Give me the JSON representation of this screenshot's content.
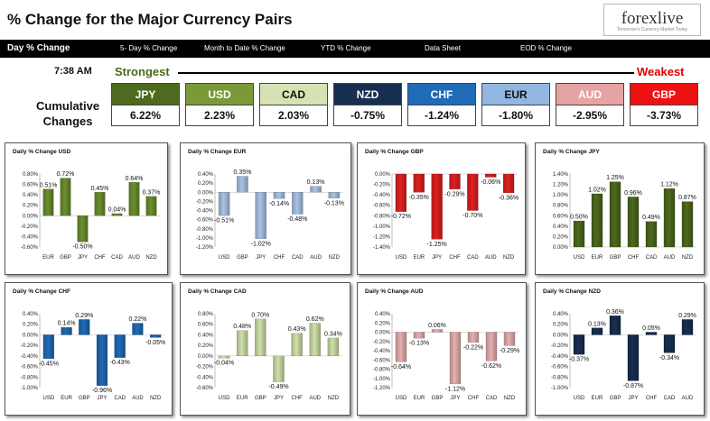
{
  "header": {
    "title": "% Change for the Major Currency Pairs",
    "logo": {
      "name": "forexlive",
      "tagline": "Tomorrow's Currency Market Today"
    }
  },
  "nav": [
    {
      "label": "Day % Change",
      "active": true
    },
    {
      "label": "5- Day % Change",
      "active": false
    },
    {
      "label": "Month to Date % Change",
      "active": false
    },
    {
      "label": "YTD % Change",
      "active": false
    },
    {
      "label": "Data Sheet",
      "active": false
    },
    {
      "label": "EOD % Change",
      "active": false
    }
  ],
  "summary": {
    "time": "7:38 AM",
    "strongest_label": "Strongest",
    "weakest_label": "Weakest",
    "cumulative_label_line1": "Cumulative",
    "cumulative_label_line2": "Changes",
    "currencies": [
      {
        "code": "JPY",
        "value": "6.22%",
        "color": "#4d6a1e",
        "text_color": "#ffffff"
      },
      {
        "code": "USD",
        "value": "2.23%",
        "color": "#7a9a3a",
        "text_color": "#ffffff"
      },
      {
        "code": "CAD",
        "value": "2.03%",
        "color": "#d6e2b4",
        "text_color": "#111111"
      },
      {
        "code": "NZD",
        "value": "-0.75%",
        "color": "#172f50",
        "text_color": "#ffffff"
      },
      {
        "code": "CHF",
        "value": "-1.24%",
        "color": "#1f6bb8",
        "text_color": "#ffffff"
      },
      {
        "code": "EUR",
        "value": "-1.80%",
        "color": "#93b6e0",
        "text_color": "#111111"
      },
      {
        "code": "AUD",
        "value": "-2.95%",
        "color": "#e6a3a3",
        "text_color": "#ffffff"
      },
      {
        "code": "GBP",
        "value": "-3.73%",
        "color": "#ee1111",
        "text_color": "#ffffff"
      }
    ]
  },
  "chart_data": [
    {
      "type": "bar",
      "title": "Daily % Change USD",
      "color": "#6b8f2e",
      "categories": [
        "EUR",
        "GBP",
        "JPY",
        "CHF",
        "CAD",
        "AUD",
        "NZD"
      ],
      "values": [
        0.51,
        0.72,
        -0.5,
        0.45,
        0.04,
        0.64,
        0.37
      ],
      "labels": [
        "0.51%",
        "0.72%",
        "-0.50%",
        "0.45%",
        "0.04%",
        "0.64%",
        "0.37%"
      ],
      "ylim": [
        -0.6,
        0.8
      ],
      "ticks": [
        0.8,
        0.6,
        0.4,
        0.2,
        0.0,
        -0.2,
        -0.4,
        -0.6
      ],
      "tick_labels": [
        "0.80%",
        "0.60%",
        "0.40%",
        "0.20%",
        "0.00%",
        "-0.20%",
        "-0.40%",
        "-0.60%"
      ]
    },
    {
      "type": "bar",
      "title": "Daily % Change EUR",
      "color": "#a9c4e6",
      "categories": [
        "USD",
        "GBP",
        "JPY",
        "CHF",
        "CAD",
        "AUD",
        "NZD"
      ],
      "values": [
        -0.51,
        0.35,
        -1.02,
        -0.14,
        -0.48,
        0.13,
        -0.13
      ],
      "labels": [
        "-0.51%",
        "0.35%",
        "-1.02%",
        "-0.14%",
        "-0.48%",
        "0.13%",
        "-0.13%"
      ],
      "ylim": [
        -1.2,
        0.4
      ],
      "ticks": [
        0.4,
        0.2,
        0.0,
        -0.2,
        -0.4,
        -0.6,
        -0.8,
        -1.0,
        -1.2
      ],
      "tick_labels": [
        "0.40%",
        "0.20%",
        "0.00%",
        "-0.20%",
        "-0.40%",
        "-0.60%",
        "-0.80%",
        "-1.00%",
        "-1.20%"
      ]
    },
    {
      "type": "bar",
      "title": "Daily % Change GBP",
      "color": "#e02020",
      "categories": [
        "USD",
        "EUR",
        "JPY",
        "CHF",
        "CAD",
        "AUD",
        "NZD"
      ],
      "values": [
        -0.72,
        -0.35,
        -1.25,
        -0.29,
        -0.7,
        -0.06,
        -0.36
      ],
      "labels": [
        "-0.72%",
        "-0.35%",
        "-1.25%",
        "-0.29%",
        "-0.70%",
        "-0.06%",
        "-0.36%"
      ],
      "ylim": [
        -1.4,
        0.0
      ],
      "ticks": [
        0.0,
        -0.2,
        -0.4,
        -0.6,
        -0.8,
        -1.0,
        -1.2,
        -1.4
      ],
      "tick_labels": [
        "0.00%",
        "-0.20%",
        "-0.40%",
        "-0.60%",
        "-0.80%",
        "-1.00%",
        "-1.20%",
        "-1.40%"
      ]
    },
    {
      "type": "bar",
      "title": "Daily % Change JPY",
      "color": "#4d6a1e",
      "categories": [
        "USD",
        "EUR",
        "GBP",
        "CHF",
        "CAD",
        "AUD",
        "NZD"
      ],
      "values": [
        0.5,
        1.02,
        1.25,
        0.96,
        0.49,
        1.12,
        0.87
      ],
      "labels": [
        "0.50%",
        "1.02%",
        "1.25%",
        "0.96%",
        "0.49%",
        "1.12%",
        "0.87%"
      ],
      "ylim": [
        0.0,
        1.4
      ],
      "ticks": [
        1.4,
        1.2,
        1.0,
        0.8,
        0.6,
        0.4,
        0.2,
        0.0
      ],
      "tick_labels": [
        "1.40%",
        "1.20%",
        "1.00%",
        "0.80%",
        "0.60%",
        "0.40%",
        "0.20%",
        "0.00%"
      ]
    },
    {
      "type": "bar",
      "title": "Daily % Change CHF",
      "color": "#1f6bb8",
      "categories": [
        "USD",
        "EUR",
        "GBP",
        "JPY",
        "CAD",
        "AUD",
        "NZD"
      ],
      "values": [
        -0.45,
        0.14,
        0.29,
        -0.96,
        -0.43,
        0.22,
        -0.05
      ],
      "labels": [
        "-0.45%",
        "0.14%",
        "0.29%",
        "-0.96%",
        "-0.43%",
        "0.22%",
        "-0.05%"
      ],
      "ylim": [
        -1.0,
        0.4
      ],
      "ticks": [
        0.4,
        0.2,
        0.0,
        -0.2,
        -0.4,
        -0.6,
        -0.8,
        -1.0
      ],
      "tick_labels": [
        "0.40%",
        "0.20%",
        "0.00%",
        "-0.20%",
        "-0.40%",
        "-0.60%",
        "-0.80%",
        "-1.00%"
      ]
    },
    {
      "type": "bar",
      "title": "Daily % Change CAD",
      "color": "#cfe0a8",
      "categories": [
        "USD",
        "EUR",
        "GBP",
        "JPY",
        "CHF",
        "AUD",
        "NZD"
      ],
      "values": [
        -0.04,
        0.48,
        0.7,
        -0.49,
        0.43,
        0.62,
        0.34
      ],
      "labels": [
        "-0.04%",
        "0.48%",
        "0.70%",
        "-0.49%",
        "0.43%",
        "0.62%",
        "0.34%"
      ],
      "ylim": [
        -0.6,
        0.8
      ],
      "ticks": [
        0.8,
        0.6,
        0.4,
        0.2,
        0.0,
        -0.2,
        -0.4,
        -0.6
      ],
      "tick_labels": [
        "0.80%",
        "0.60%",
        "0.40%",
        "0.20%",
        "0.00%",
        "-0.20%",
        "-0.40%",
        "-0.60%"
      ]
    },
    {
      "type": "bar",
      "title": "Daily % Change AUD",
      "color": "#e6b0b0",
      "categories": [
        "USD",
        "EUR",
        "GBP",
        "JPY",
        "CHF",
        "CAD",
        "NZD"
      ],
      "values": [
        -0.64,
        -0.13,
        0.06,
        -1.12,
        -0.22,
        -0.62,
        -0.29
      ],
      "labels": [
        "-0.64%",
        "-0.13%",
        "0.06%",
        "-1.12%",
        "-0.22%",
        "-0.62%",
        "-0.29%"
      ],
      "ylim": [
        -1.2,
        0.4
      ],
      "ticks": [
        0.4,
        0.2,
        0.0,
        -0.2,
        -0.4,
        -0.6,
        -0.8,
        -1.0,
        -1.2
      ],
      "tick_labels": [
        "0.40%",
        "0.20%",
        "0.00%",
        "-0.20%",
        "-0.40%",
        "-0.60%",
        "-0.80%",
        "-1.00%",
        "-1.20%"
      ]
    },
    {
      "type": "bar",
      "title": "Daily % Change NZD",
      "color": "#172f50",
      "categories": [
        "USD",
        "EUR",
        "GBP",
        "JPY",
        "CHF",
        "CAD",
        "AUD"
      ],
      "values": [
        -0.37,
        0.13,
        0.36,
        -0.87,
        0.05,
        -0.34,
        0.29
      ],
      "labels": [
        "-0.37%",
        "0.13%",
        "0.36%",
        "-0.87%",
        "0.05%",
        "-0.34%",
        "0.29%"
      ],
      "ylim": [
        -1.0,
        0.4
      ],
      "ticks": [
        0.4,
        0.2,
        0.0,
        -0.2,
        -0.4,
        -0.6,
        -0.8,
        -1.0
      ],
      "tick_labels": [
        "0.40%",
        "0.20%",
        "0.00%",
        "-0.20%",
        "-0.40%",
        "-0.60%",
        "-0.80%",
        "-1.00%"
      ]
    }
  ]
}
